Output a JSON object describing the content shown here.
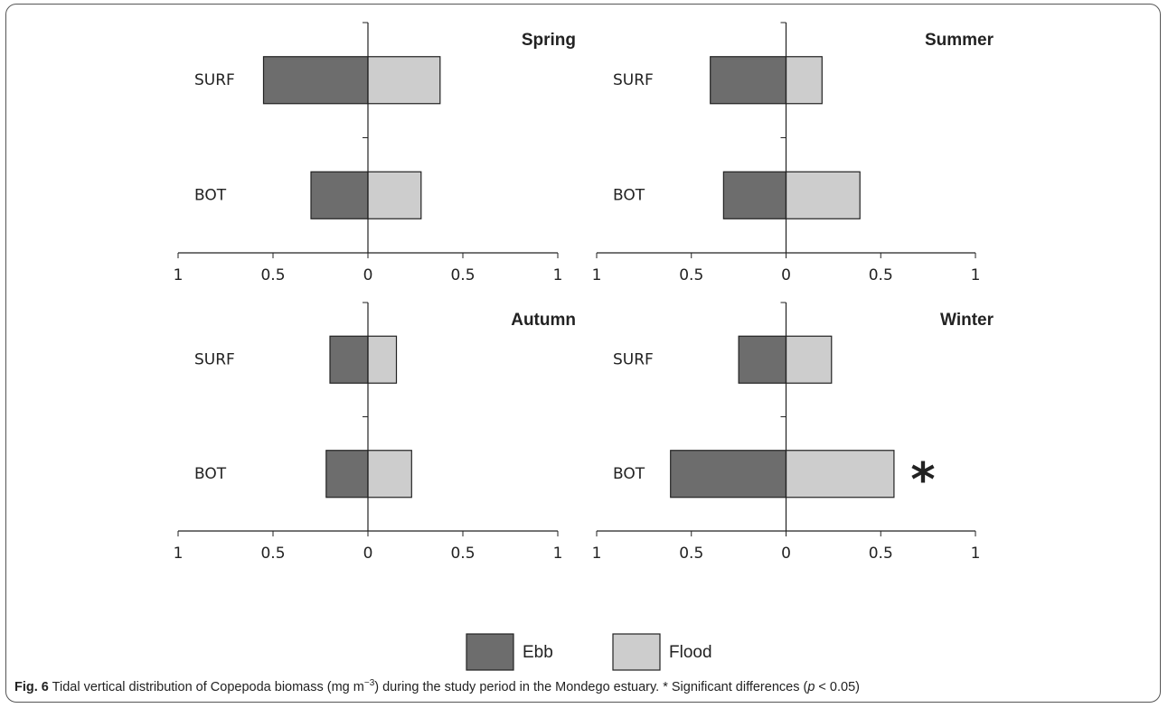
{
  "chart_data": [
    {
      "type": "hbar",
      "title": "Spring",
      "categories": [
        "SURF",
        "BOT"
      ],
      "series": [
        {
          "name": "Ebb",
          "color": "#6d6d6d",
          "values": [
            -0.55,
            -0.3
          ]
        },
        {
          "name": "Flood",
          "color": "#cdcdcd",
          "values": [
            0.38,
            0.28
          ]
        }
      ],
      "xlim": [
        -1,
        1
      ],
      "xticks": [
        {
          "value": -1,
          "label": "1"
        },
        {
          "value": -0.5,
          "label": "0.5"
        },
        0,
        0.5,
        1
      ]
    },
    {
      "type": "hbar",
      "title": "Summer",
      "categories": [
        "SURF",
        "BOT"
      ],
      "series": [
        {
          "name": "Ebb",
          "color": "#6d6d6d",
          "values": [
            -0.4,
            -0.33
          ]
        },
        {
          "name": "Flood",
          "color": "#cdcdcd",
          "values": [
            0.19,
            0.39
          ]
        }
      ],
      "xlim": [
        -1,
        1
      ],
      "xticks": [
        {
          "value": -1,
          "label": "1"
        },
        {
          "value": -0.5,
          "label": "0.5"
        },
        0,
        0.5,
        1
      ]
    },
    {
      "type": "hbar",
      "title": "Autumn",
      "categories": [
        "SURF",
        "BOT"
      ],
      "series": [
        {
          "name": "Ebb",
          "color": "#6d6d6d",
          "values": [
            -0.2,
            -0.22
          ]
        },
        {
          "name": "Flood",
          "color": "#cdcdcd",
          "values": [
            0.15,
            0.23
          ]
        }
      ],
      "xlim": [
        -1,
        1
      ],
      "xticks": [
        {
          "value": -1,
          "label": "1"
        },
        {
          "value": -0.5,
          "label": "0.5"
        },
        0,
        0.5,
        1
      ]
    },
    {
      "type": "hbar",
      "title": "Winter",
      "categories": [
        "SURF",
        "BOT"
      ],
      "series": [
        {
          "name": "Ebb",
          "color": "#6d6d6d",
          "values": [
            -0.25,
            -0.61
          ]
        },
        {
          "name": "Flood",
          "color": "#cdcdcd",
          "values": [
            0.24,
            0.57
          ]
        }
      ],
      "xlim": [
        -1,
        1
      ],
      "xticks": [
        {
          "value": -1,
          "label": "1"
        },
        {
          "value": -0.5,
          "label": "0.5"
        },
        0,
        0.5,
        1
      ],
      "annotation": "*"
    }
  ],
  "caption": {
    "label": "Fig. 6",
    "parts": [
      "Tidal vertical distribution of Copepoda biomass (mg m",
      "−3",
      ") during the study period in the Mondego estuary. * Significant differences (",
      "p",
      " < 0.05)"
    ]
  }
}
